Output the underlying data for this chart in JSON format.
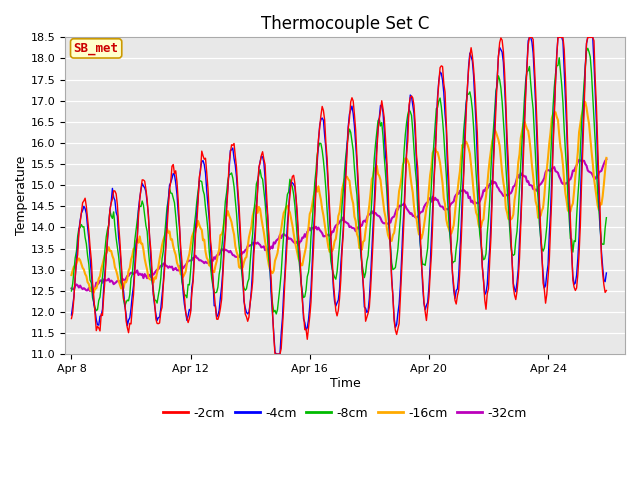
{
  "title": "Thermocouple Set C",
  "xlabel": "Time",
  "ylabel": "Temperature",
  "ylim": [
    11.0,
    18.5
  ],
  "yticks": [
    11.0,
    11.5,
    12.0,
    12.5,
    13.0,
    13.5,
    14.0,
    14.5,
    15.0,
    15.5,
    16.0,
    16.5,
    17.0,
    17.5,
    18.0,
    18.5
  ],
  "xtick_labels": [
    "Apr 8",
    "Apr 12",
    "Apr 16",
    "Apr 20",
    "Apr 24"
  ],
  "xtick_positions": [
    0,
    96,
    192,
    288,
    384
  ],
  "n_points": 432,
  "day_hours": 24,
  "annotation_text": "SB_met",
  "annotation_bg": "#ffffcc",
  "annotation_edge": "#cc9900",
  "annotation_text_color": "#cc0000",
  "colors": {
    "-2cm": "#ff0000",
    "-4cm": "#0000ff",
    "-8cm": "#00bb00",
    "-16cm": "#ffaa00",
    "-32cm": "#bb00bb"
  },
  "legend_labels": [
    "-2cm",
    "-4cm",
    "-8cm",
    "-16cm",
    "-32cm"
  ],
  "fig_bg": "#ffffff",
  "plot_bg": "#e8e8e8",
  "grid_color": "#d0d0d0",
  "title_fontsize": 12,
  "axis_fontsize": 9,
  "tick_fontsize": 8,
  "legend_fontsize": 9,
  "linewidth_shallow": 1.0,
  "linewidth_deep": 1.5
}
